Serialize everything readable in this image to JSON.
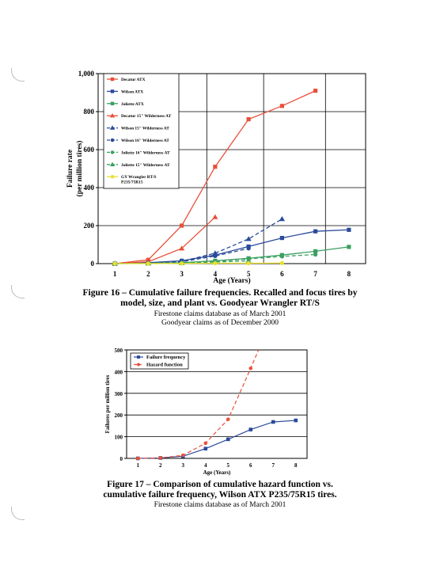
{
  "fig16": {
    "caption_line1": "Figure 16 – Cumulative failure frequencies. Recalled and focus tires by",
    "caption_line2": "model, size, and plant vs. Goodyear Wrangler RT/S",
    "note1": "Firestone claims database as of March 2001",
    "note2": "Goodyear claims as of December 2000"
  },
  "fig17": {
    "caption_line1": "Figure 17 – Comparison of cumulative hazard function vs.",
    "caption_line2": "cumulative failure frequency, Wilson ATX P235/75R15 tires.",
    "note1": "Firestone claims database as of March 2001"
  },
  "chart_data": [
    {
      "type": "line",
      "xlabel": "Age (Years)",
      "ylabel": "Failure rate (per million tires)",
      "xlim": [
        0.5,
        8.5
      ],
      "ylim": [
        0,
        1000
      ],
      "x_ticks": [
        1,
        2,
        3,
        4,
        5,
        6,
        7,
        8
      ],
      "y_ticks": [
        0,
        200,
        400,
        600,
        800,
        1000
      ],
      "y_tick_labels": [
        "0",
        "200",
        "400",
        "600",
        "800",
        "1,000"
      ],
      "grid": "gridlines",
      "legend_position": "top-left",
      "series": [
        {
          "name": "Decatur ATX",
          "color": "#e8503a",
          "dash": "solid",
          "marker": "square",
          "x": [
            1,
            2,
            3,
            4,
            5,
            6,
            7
          ],
          "y": [
            0,
            20,
            200,
            510,
            760,
            830,
            910
          ]
        },
        {
          "name": "Wilson ATX",
          "color": "#2a4a9a",
          "dash": "solid",
          "marker": "square",
          "x": [
            1,
            2,
            3,
            4,
            5,
            6,
            7,
            8
          ],
          "y": [
            0,
            5,
            15,
            45,
            90,
            135,
            170,
            178
          ]
        },
        {
          "name": "Joliette ATX",
          "color": "#3aa060",
          "dash": "solid",
          "marker": "square",
          "x": [
            1,
            2,
            3,
            4,
            5,
            6,
            7,
            8
          ],
          "y": [
            0,
            2,
            5,
            15,
            28,
            45,
            65,
            88
          ]
        },
        {
          "name": "Decatur 15\" Wilderness AT",
          "color": "#e8503a",
          "dash": "solid",
          "marker": "triangle",
          "x": [
            1,
            2,
            3,
            4
          ],
          "y": [
            0,
            10,
            80,
            245
          ]
        },
        {
          "name": "Wilson 15\" Wilderness AT",
          "color": "#2a4a9a",
          "dash": "dashed",
          "marker": "triangle",
          "x": [
            1,
            2,
            3,
            4,
            5,
            6
          ],
          "y": [
            0,
            3,
            12,
            55,
            130,
            235
          ]
        },
        {
          "name": "Wilson 16\" Wilderness AT",
          "color": "#2a4a9a",
          "dash": "dashed",
          "marker": "circle",
          "x": [
            1,
            2,
            3,
            4,
            5
          ],
          "y": [
            0,
            2,
            10,
            40,
            80
          ]
        },
        {
          "name": "Joliette 16\" Wilderness AT",
          "color": "#3aa060",
          "dash": "dashed",
          "marker": "circle",
          "x": [
            1,
            2,
            3,
            4,
            5,
            6,
            7
          ],
          "y": [
            0,
            2,
            5,
            12,
            25,
            38,
            48
          ]
        },
        {
          "name": "Joliette 15\" Wilderness AT",
          "color": "#3aa060",
          "dash": "dashed",
          "marker": "triangle",
          "x": [
            1,
            2,
            3,
            4,
            5
          ],
          "y": [
            0,
            1,
            3,
            8,
            15
          ]
        },
        {
          "name": "GY Wrangler RT/S P235/75R15",
          "color": "#e8e030",
          "dash": "solid",
          "marker": "circle",
          "x": [
            1,
            2,
            3,
            4,
            5,
            6
          ],
          "y": [
            0,
            0,
            1,
            2,
            2,
            3
          ]
        }
      ]
    },
    {
      "type": "line",
      "xlabel": "Age (Years)",
      "ylabel": "Failures per million tires",
      "xlim": [
        0.5,
        8.5
      ],
      "ylim": [
        0,
        500
      ],
      "x_ticks": [
        1,
        2,
        3,
        4,
        5,
        6,
        7,
        8
      ],
      "y_ticks": [
        0,
        100,
        200,
        300,
        400,
        500
      ],
      "y_tick_labels": [
        "0",
        "100",
        "200",
        "300",
        "400",
        "500"
      ],
      "grid": "gridlines",
      "legend_position": "top-left",
      "series": [
        {
          "name": "Failure frequency",
          "color": "#2a4a9a",
          "dash": "solid",
          "marker": "square",
          "x": [
            1,
            2,
            3,
            4,
            5,
            6,
            7,
            8
          ],
          "y": [
            0,
            2,
            10,
            45,
            88,
            133,
            168,
            175
          ]
        },
        {
          "name": "Hazard function",
          "color": "#e8503a",
          "dash": "dashed",
          "marker": "circle",
          "x": [
            1,
            2,
            3,
            4,
            5,
            6,
            6.35
          ],
          "y": [
            0,
            2,
            14,
            70,
            180,
            415,
            500
          ]
        }
      ]
    }
  ]
}
